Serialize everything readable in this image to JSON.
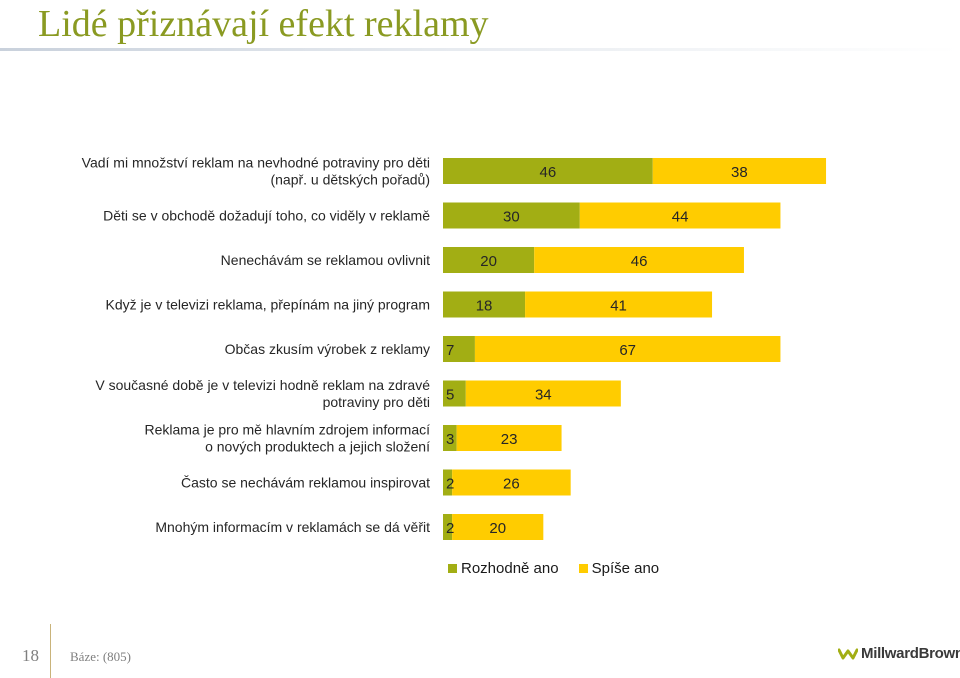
{
  "title": "Lidé přiznávají efekt reklamy",
  "chart_data": {
    "type": "bar",
    "orientation": "horizontal",
    "stacked": true,
    "categories": [
      "Vadí mi množství reklam na nevhodné potraviny pro děti (např. u dětských pořadů)",
      "Děti se v obchodě dožadují toho, co viděly v reklamě",
      "Nenechávám se reklamou ovlivnit",
      "Když je v televizi reklama, přepínám na jiný program",
      "Občas zkusím výrobek z reklamy",
      "V současné době je v televizi hodně reklam na zdravé potraviny pro děti",
      "Reklama je pro mě hlavním zdrojem informací o nových produktech a jejich složení",
      "Často se nechávám reklamou inspirovat",
      "Mnohým informacím v reklamách se dá věřit"
    ],
    "category_lines": [
      [
        "Vadí mi množství reklam na nevhodné potraviny pro děti",
        "(např. u dětských pořadů)"
      ],
      [
        "Děti se v obchodě dožadují toho, co viděly v reklamě"
      ],
      [
        "Nenechávám se reklamou ovlivnit"
      ],
      [
        "Když je v televizi reklama, přepínám na jiný program"
      ],
      [
        "Občas zkusím výrobek z reklamy"
      ],
      [
        "V současné době je v televizi hodně reklam na zdravé",
        "potraviny pro děti"
      ],
      [
        "Reklama je pro mě hlavním zdrojem informací",
        "o nových produktech a jejich složení"
      ],
      [
        "Často se nechávám reklamou inspirovat"
      ],
      [
        "Mnohým informacím v reklamách se dá věřit"
      ]
    ],
    "series": [
      {
        "name": "Rozhodně ano",
        "color": "#a2ae14",
        "values": [
          46,
          30,
          20,
          18,
          7,
          5,
          3,
          2,
          2
        ]
      },
      {
        "name": "Spíše ano",
        "color": "#ffcc00",
        "values": [
          38,
          44,
          46,
          41,
          67,
          34,
          23,
          26,
          20
        ]
      }
    ],
    "xlim": [
      0,
      100
    ],
    "legend_position": "bottom",
    "grid": false
  },
  "footer": {
    "page_number": "18",
    "base_note": "Báze: (805)",
    "logo_text": "MillwardBrown"
  }
}
